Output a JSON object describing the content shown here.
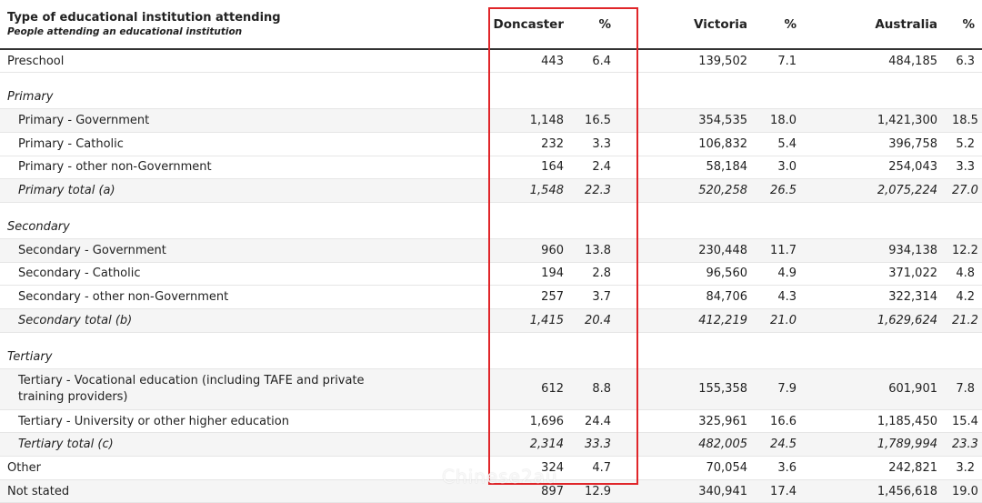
{
  "header": {
    "title": "Type of educational institution attending",
    "subtitle": "People attending an educational institution",
    "columns": [
      "Doncaster",
      "%",
      "Victoria",
      "%",
      "Australia",
      "%"
    ]
  },
  "rows": [
    {
      "label": "Preschool",
      "values": [
        "443",
        "6.4",
        "139,502",
        "7.1",
        "484,185",
        "6.3"
      ]
    },
    {
      "label": "Primary",
      "group": true
    },
    {
      "label": "Primary - Government",
      "values": [
        "1,148",
        "16.5",
        "354,535",
        "18.0",
        "1,421,300",
        "18.5"
      ]
    },
    {
      "label": "Primary - Catholic",
      "values": [
        "232",
        "3.3",
        "106,832",
        "5.4",
        "396,758",
        "5.2"
      ]
    },
    {
      "label": "Primary - other non-Government",
      "values": [
        "164",
        "2.4",
        "58,184",
        "3.0",
        "254,043",
        "3.3"
      ]
    },
    {
      "label": "Primary total (a)",
      "total": true,
      "values": [
        "1,548",
        "22.3",
        "520,258",
        "26.5",
        "2,075,224",
        "27.0"
      ]
    },
    {
      "label": "Secondary",
      "group": true
    },
    {
      "label": "Secondary - Government",
      "values": [
        "960",
        "13.8",
        "230,448",
        "11.7",
        "934,138",
        "12.2"
      ]
    },
    {
      "label": "Secondary - Catholic",
      "values": [
        "194",
        "2.8",
        "96,560",
        "4.9",
        "371,022",
        "4.8"
      ]
    },
    {
      "label": "Secondary - other non-Government",
      "values": [
        "257",
        "3.7",
        "84,706",
        "4.3",
        "322,314",
        "4.2"
      ]
    },
    {
      "label": "Secondary total (b)",
      "total": true,
      "values": [
        "1,415",
        "20.4",
        "412,219",
        "21.0",
        "1,629,624",
        "21.2"
      ]
    },
    {
      "label": "Tertiary",
      "group": true
    },
    {
      "label": "Tertiary - Vocational education (including TAFE and private training providers)",
      "values": [
        "612",
        "8.8",
        "155,358",
        "7.9",
        "601,901",
        "7.8"
      ]
    },
    {
      "label": "Tertiary - University or other higher education",
      "values": [
        "1,696",
        "24.4",
        "325,961",
        "16.6",
        "1,185,450",
        "15.4"
      ]
    },
    {
      "label": "Tertiary total (c)",
      "total": true,
      "values": [
        "2,314",
        "33.3",
        "482,005",
        "24.5",
        "1,789,994",
        "23.3"
      ]
    },
    {
      "label": "Other",
      "values": [
        "324",
        "4.7",
        "70,054",
        "3.6",
        "242,821",
        "3.2"
      ]
    },
    {
      "label": "Not stated",
      "values": [
        "897",
        "12.9",
        "340,941",
        "17.4",
        "1,456,618",
        "19.0"
      ]
    }
  ],
  "watermark": "Chinese2au",
  "colors": {
    "highlight": "#e0262a",
    "header_rule": "#333333",
    "row_shade": "#f5f5f5"
  }
}
